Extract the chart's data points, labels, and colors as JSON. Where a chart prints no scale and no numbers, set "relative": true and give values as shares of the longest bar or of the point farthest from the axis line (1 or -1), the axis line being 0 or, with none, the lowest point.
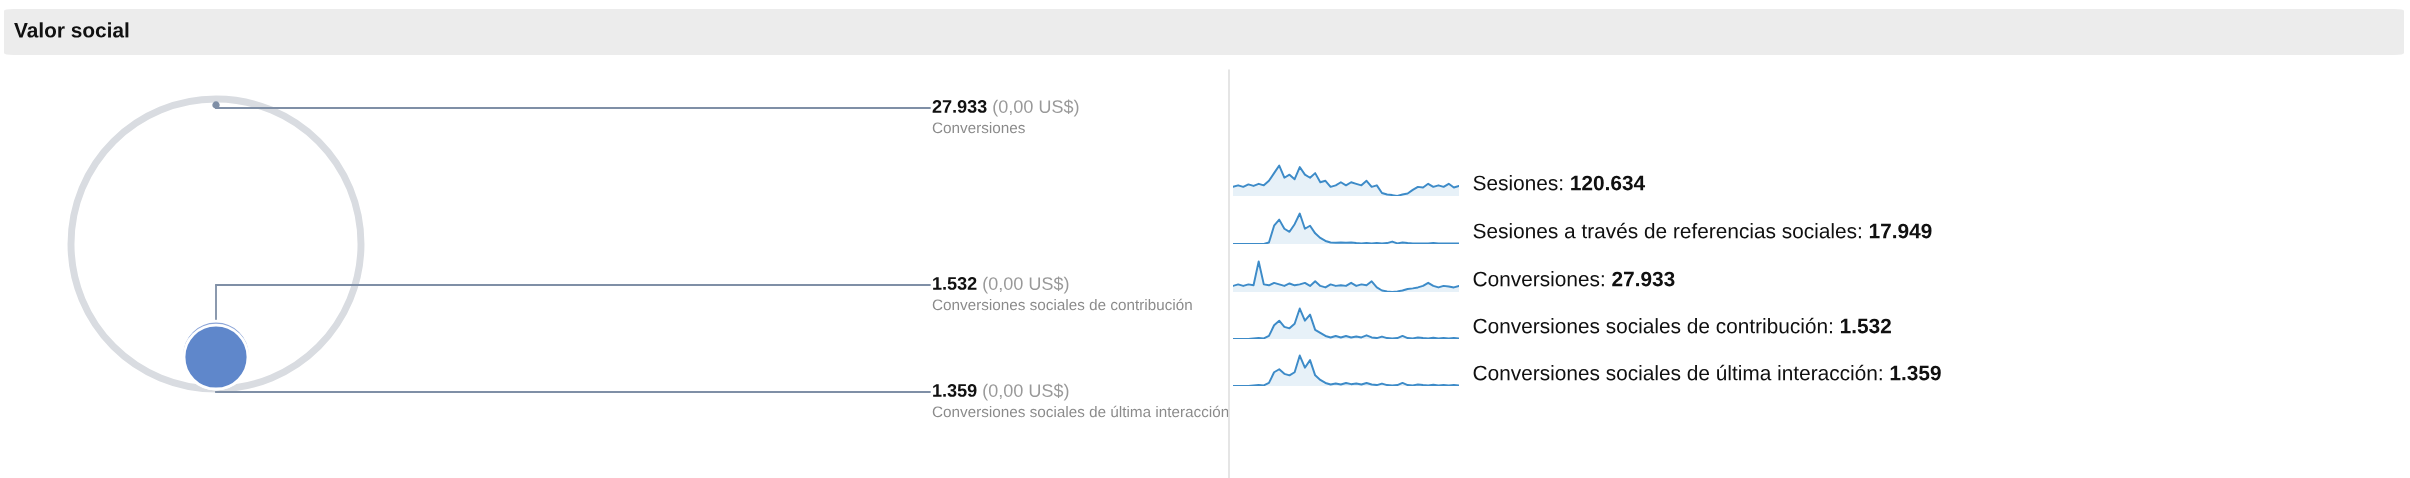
{
  "chart_data": [
    {
      "type": "other",
      "title": "Valor social",
      "categories": [
        "Conversiones",
        "Conversiones sociales de contribución",
        "Conversiones sociales de última interacción"
      ],
      "values": [
        27933,
        1532,
        1359
      ],
      "value_labels": [
        "27.933",
        "1.532",
        "1.359"
      ],
      "annotations": [
        "(0,00 US$)",
        "(0,00 US$)",
        "(0,00 US$)"
      ],
      "colors": [
        "#d9dce1",
        "#8da6d8",
        "#5f87cb"
      ]
    },
    {
      "type": "area",
      "relative": true,
      "annotations": [
        "120.634"
      ],
      "categories": [
        null,
        null,
        null,
        null,
        null,
        null,
        null,
        null,
        null,
        null,
        null,
        null,
        null,
        null,
        null,
        null,
        null,
        null,
        null,
        null,
        null,
        null,
        null,
        null,
        null,
        null,
        null,
        null,
        null,
        null,
        null,
        null,
        null,
        null,
        null,
        null,
        null,
        null,
        null,
        null,
        null,
        null,
        null,
        null,
        null
      ],
      "series": [
        {
          "name": "Sesiones:",
          "color": "#3d8bc8",
          "values": [
            0.3,
            0.35,
            0.3,
            0.38,
            0.33,
            0.4,
            0.35,
            0.5,
            0.75,
            1.0,
            0.6,
            0.7,
            0.55,
            0.95,
            0.7,
            0.6,
            0.75,
            0.45,
            0.5,
            0.3,
            0.35,
            0.45,
            0.35,
            0.45,
            0.4,
            0.35,
            0.5,
            0.3,
            0.35,
            0.1,
            0.05,
            0.03,
            0.0,
            0.05,
            0.08,
            0.2,
            0.3,
            0.28,
            0.4,
            0.3,
            0.35,
            0.3,
            0.4,
            0.28,
            0.33
          ]
        }
      ]
    },
    {
      "type": "area",
      "relative": true,
      "annotations": [
        "17.949"
      ],
      "categories": [
        null,
        null,
        null,
        null,
        null,
        null,
        null,
        null,
        null,
        null,
        null,
        null,
        null,
        null,
        null,
        null,
        null,
        null,
        null,
        null,
        null,
        null,
        null,
        null,
        null,
        null,
        null,
        null,
        null,
        null,
        null,
        null,
        null,
        null,
        null,
        null,
        null,
        null,
        null,
        null,
        null,
        null,
        null,
        null,
        null
      ],
      "series": [
        {
          "name": "Sesiones a través de referencias sociales:",
          "color": "#3d8bc8",
          "values": [
            0,
            0,
            0,
            0,
            0,
            0,
            0,
            0.05,
            0.6,
            0.8,
            0.5,
            0.4,
            0.65,
            1.0,
            0.5,
            0.6,
            0.35,
            0.2,
            0.1,
            0.05,
            0.04,
            0.05,
            0.04,
            0.05,
            0.03,
            0.02,
            0.03,
            0.02,
            0.03,
            0.02,
            0.03,
            0.08,
            0.02,
            0.05,
            0.03,
            0.02,
            0.02,
            0.02,
            0.02,
            0.03,
            0.02,
            0.02,
            0.02,
            0.02,
            0.02
          ]
        }
      ]
    },
    {
      "type": "area",
      "relative": true,
      "annotations": [
        "27.933"
      ],
      "categories": [
        null,
        null,
        null,
        null,
        null,
        null,
        null,
        null,
        null,
        null,
        null,
        null,
        null,
        null,
        null,
        null,
        null,
        null,
        null,
        null,
        null,
        null,
        null,
        null,
        null,
        null,
        null,
        null,
        null,
        null,
        null,
        null,
        null,
        null,
        null,
        null,
        null,
        null,
        null,
        null,
        null,
        null,
        null,
        null,
        null
      ],
      "series": [
        {
          "name": "Conversiones:",
          "color": "#3d8bc8",
          "values": [
            0.2,
            0.25,
            0.2,
            0.25,
            0.22,
            1.0,
            0.25,
            0.22,
            0.3,
            0.25,
            0.2,
            0.28,
            0.22,
            0.25,
            0.3,
            0.2,
            0.35,
            0.2,
            0.15,
            0.25,
            0.2,
            0.22,
            0.2,
            0.3,
            0.2,
            0.25,
            0.22,
            0.35,
            0.15,
            0.05,
            0.02,
            0.0,
            0.02,
            0.05,
            0.1,
            0.12,
            0.15,
            0.2,
            0.3,
            0.2,
            0.15,
            0.2,
            0.18,
            0.15,
            0.2
          ]
        }
      ]
    },
    {
      "type": "area",
      "relative": true,
      "annotations": [
        "1.532"
      ],
      "categories": [
        null,
        null,
        null,
        null,
        null,
        null,
        null,
        null,
        null,
        null,
        null,
        null,
        null,
        null,
        null,
        null,
        null,
        null,
        null,
        null,
        null,
        null,
        null,
        null,
        null,
        null,
        null,
        null,
        null,
        null,
        null,
        null,
        null,
        null,
        null,
        null,
        null,
        null,
        null,
        null,
        null,
        null,
        null,
        null,
        null
      ],
      "series": [
        {
          "name": "Conversiones sociales de contribución:",
          "color": "#3d8bc8",
          "values": [
            0,
            0,
            0,
            0,
            0.02,
            0.03,
            0.02,
            0.1,
            0.45,
            0.6,
            0.4,
            0.35,
            0.5,
            1.0,
            0.6,
            0.8,
            0.3,
            0.2,
            0.1,
            0.05,
            0.1,
            0.05,
            0.1,
            0.05,
            0.08,
            0.05,
            0.12,
            0.05,
            0.03,
            0.08,
            0.03,
            0.02,
            0.03,
            0.1,
            0.03,
            0.02,
            0.05,
            0.03,
            0.02,
            0.04,
            0.02,
            0.03,
            0.02,
            0.03,
            0.02
          ]
        }
      ]
    },
    {
      "type": "area",
      "relative": true,
      "annotations": [
        "1.359"
      ],
      "categories": [
        null,
        null,
        null,
        null,
        null,
        null,
        null,
        null,
        null,
        null,
        null,
        null,
        null,
        null,
        null,
        null,
        null,
        null,
        null,
        null,
        null,
        null,
        null,
        null,
        null,
        null,
        null,
        null,
        null,
        null,
        null,
        null,
        null,
        null,
        null,
        null,
        null,
        null,
        null,
        null,
        null,
        null,
        null,
        null,
        null
      ],
      "series": [
        {
          "name": "Conversiones sociales de última interacción:",
          "color": "#3d8bc8",
          "values": [
            0,
            0,
            0,
            0,
            0.02,
            0.03,
            0.02,
            0.1,
            0.45,
            0.55,
            0.4,
            0.35,
            0.45,
            1.0,
            0.6,
            0.85,
            0.35,
            0.2,
            0.1,
            0.05,
            0.08,
            0.05,
            0.1,
            0.06,
            0.08,
            0.05,
            0.1,
            0.05,
            0.03,
            0.08,
            0.03,
            0.02,
            0.03,
            0.1,
            0.03,
            0.02,
            0.05,
            0.03,
            0.02,
            0.04,
            0.02,
            0.03,
            0.02,
            0.03,
            0.02
          ]
        }
      ]
    }
  ]
}
